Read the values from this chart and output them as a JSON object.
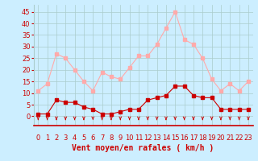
{
  "hours": [
    0,
    1,
    2,
    3,
    4,
    5,
    6,
    7,
    8,
    9,
    10,
    11,
    12,
    13,
    14,
    15,
    16,
    17,
    18,
    19,
    20,
    21,
    22,
    23
  ],
  "wind_avg": [
    1,
    1,
    7,
    6,
    6,
    4,
    3,
    1,
    1,
    2,
    3,
    3,
    7,
    8,
    9,
    13,
    13,
    9,
    8,
    8,
    3,
    3,
    3,
    3
  ],
  "wind_gust": [
    11,
    14,
    27,
    25,
    20,
    15,
    11,
    19,
    17,
    16,
    21,
    26,
    26,
    31,
    38,
    45,
    33,
    31,
    25,
    16,
    11,
    14,
    11,
    15
  ],
  "line_color_avg": "#cc0000",
  "line_color_gust": "#ffaaaa",
  "marker_size": 2.5,
  "xlabel": "Vent moyen/en rafales ( km/h )",
  "xlabel_fontsize": 7,
  "ylabel_ticks": [
    0,
    5,
    10,
    15,
    20,
    25,
    30,
    35,
    40,
    45
  ],
  "ylim": [
    -4,
    48
  ],
  "xlim": [
    -0.5,
    23.5
  ],
  "background_color": "#cceeff",
  "grid_color": "#aacccc",
  "tick_fontsize": 6,
  "arrow_color": "#cc0000"
}
